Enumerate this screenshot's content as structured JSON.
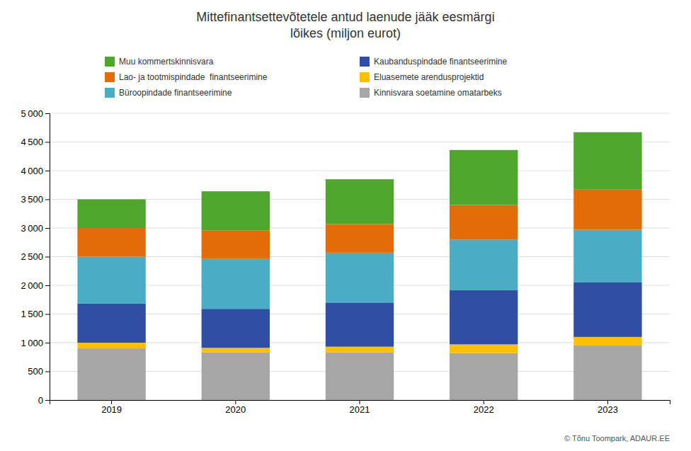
{
  "chart_data": {
    "type": "bar",
    "stacked": true,
    "title": "Mittefinantsettevõtetele antud laenude jääk eesmärgi\nlõikes (miljon eurot)",
    "categories": [
      "2019",
      "2020",
      "2021",
      "2022",
      "2023"
    ],
    "series": [
      {
        "name": "Kinnisvara soetamine omatarbeks",
        "color": "#a6a6a6",
        "values": [
          900,
          830,
          830,
          820,
          950
        ]
      },
      {
        "name": "Eluasemete arendusprojektid",
        "color": "#ffc000",
        "values": [
          100,
          80,
          100,
          150,
          150
        ]
      },
      {
        "name": "Kaubanduspindade finantseerimine",
        "color": "#2e4fa3",
        "values": [
          680,
          680,
          770,
          950,
          950
        ]
      },
      {
        "name": "Büroopindade finantseerimine",
        "color": "#4bacc6",
        "values": [
          820,
          870,
          870,
          880,
          920
        ]
      },
      {
        "name": "Lao- ja tootmispindade  finantseerimine",
        "color": "#e36c09",
        "values": [
          500,
          500,
          500,
          600,
          700
        ]
      },
      {
        "name": "Muu kommertskinnisvara",
        "color": "#4ea72c",
        "values": [
          500,
          680,
          780,
          960,
          1000
        ]
      }
    ],
    "ylim": [
      0,
      5000
    ],
    "yticks": [
      0,
      500,
      {
        "value": 1000,
        "label": "1 000"
      },
      {
        "value": 1500,
        "label": "1 500"
      },
      {
        "value": 2000,
        "label": "2 000"
      },
      {
        "value": 2500,
        "label": "2 500"
      },
      {
        "value": 3000,
        "label": "3 000"
      },
      {
        "value": 3500,
        "label": "3 500"
      },
      {
        "value": 4000,
        "label": "4 000"
      },
      {
        "value": 4500,
        "label": "4 500"
      },
      {
        "value": 5000,
        "label": "5 000"
      }
    ],
    "grid": true,
    "legend": "top",
    "annotation": "© Tõnu Toompark, ADAUR.EE"
  }
}
